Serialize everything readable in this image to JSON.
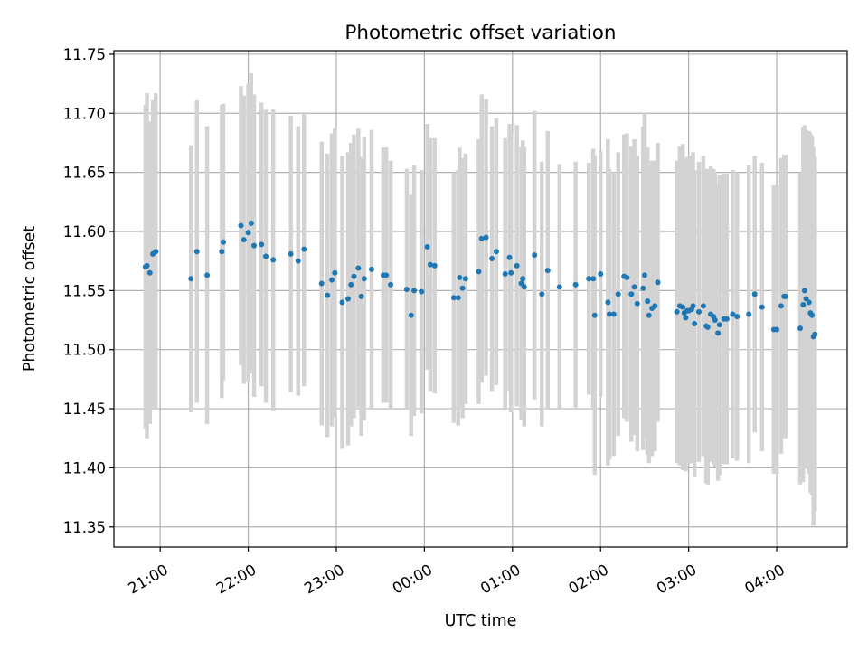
{
  "chart_data": {
    "type": "scatter",
    "title": "Photometric offset variation",
    "xlabel": "UTC time",
    "ylabel": "Photometric offset",
    "x_tick_labels": [
      "21:00",
      "22:00",
      "23:00",
      "00:00",
      "01:00",
      "02:00",
      "03:00",
      "04:00"
    ],
    "x_ticks_hours": [
      21,
      22,
      23,
      24,
      25,
      26,
      27,
      28
    ],
    "xlim_hours": [
      20.475,
      28.8
    ],
    "ylim": [
      11.333,
      11.753
    ],
    "y_ticks": [
      11.35,
      11.4,
      11.45,
      11.5,
      11.55,
      11.6,
      11.65,
      11.7,
      11.75
    ],
    "y_tick_labels": [
      "11.35",
      "11.40",
      "11.45",
      "11.50",
      "11.55",
      "11.60",
      "11.65",
      "11.70",
      "11.75"
    ],
    "grid": true,
    "colors": {
      "point": "#1f77b4",
      "errorbar": "#d3d3d3",
      "grid": "#b0b0b0"
    },
    "points": [
      {
        "t": "20:50",
        "y": 11.57,
        "e": 0.137
      },
      {
        "t": "20:51",
        "y": 11.571,
        "e": 0.146
      },
      {
        "t": "20:53",
        "y": 11.565,
        "e": 0.128
      },
      {
        "t": "20:55",
        "y": 11.581,
        "e": 0.13
      },
      {
        "t": "20:57",
        "y": 11.583,
        "e": 0.134
      },
      {
        "t": "21:21",
        "y": 11.56,
        "e": 0.113
      },
      {
        "t": "21:25",
        "y": 11.583,
        "e": 0.128
      },
      {
        "t": "21:32",
        "y": 11.563,
        "e": 0.126
      },
      {
        "t": "21:42",
        "y": 11.583,
        "e": 0.124
      },
      {
        "t": "21:43",
        "y": 11.591,
        "e": 0.117
      },
      {
        "t": "21:55",
        "y": 11.605,
        "e": 0.118
      },
      {
        "t": "21:57",
        "y": 11.593,
        "e": 0.122
      },
      {
        "t": "22:00",
        "y": 11.599,
        "e": 0.126
      },
      {
        "t": "22:02",
        "y": 11.607,
        "e": 0.127
      },
      {
        "t": "22:04",
        "y": 11.588,
        "e": 0.128
      },
      {
        "t": "22:09",
        "y": 11.589,
        "e": 0.12
      },
      {
        "t": "22:12",
        "y": 11.579,
        "e": 0.124
      },
      {
        "t": "22:17",
        "y": 11.576,
        "e": 0.128
      },
      {
        "t": "22:29",
        "y": 11.581,
        "e": 0.117
      },
      {
        "t": "22:34",
        "y": 11.575,
        "e": 0.114
      },
      {
        "t": "22:38",
        "y": 11.585,
        "e": 0.116
      },
      {
        "t": "22:50",
        "y": 11.556,
        "e": 0.12
      },
      {
        "t": "22:54",
        "y": 11.546,
        "e": 0.12
      },
      {
        "t": "22:57",
        "y": 11.559,
        "e": 0.124
      },
      {
        "t": "22:59",
        "y": 11.565,
        "e": 0.122
      },
      {
        "t": "23:04",
        "y": 11.54,
        "e": 0.124
      },
      {
        "t": "23:08",
        "y": 11.543,
        "e": 0.124
      },
      {
        "t": "23:10",
        "y": 11.555,
        "e": 0.12
      },
      {
        "t": "23:12",
        "y": 11.562,
        "e": 0.12
      },
      {
        "t": "23:15",
        "y": 11.569,
        "e": 0.118
      },
      {
        "t": "23:17",
        "y": 11.545,
        "e": 0.118
      },
      {
        "t": "23:19",
        "y": 11.56,
        "e": 0.12
      },
      {
        "t": "23:24",
        "y": 11.568,
        "e": 0.118
      },
      {
        "t": "23:32",
        "y": 11.563,
        "e": 0.108
      },
      {
        "t": "23:34",
        "y": 11.563,
        "e": 0.108
      },
      {
        "t": "23:37",
        "y": 11.555,
        "e": 0.105
      },
      {
        "t": "23:48",
        "y": 11.551,
        "e": 0.102
      },
      {
        "t": "23:51",
        "y": 11.529,
        "e": 0.102
      },
      {
        "t": "23:53",
        "y": 11.55,
        "e": 0.106
      },
      {
        "t": "23:58",
        "y": 11.549,
        "e": 0.103
      },
      {
        "t": "00:02",
        "y": 11.587,
        "e": 0.104
      },
      {
        "t": "00:04",
        "y": 11.572,
        "e": 0.107
      },
      {
        "t": "00:07",
        "y": 11.571,
        "e": 0.108
      },
      {
        "t": "00:20",
        "y": 11.544,
        "e": 0.106
      },
      {
        "t": "00:23",
        "y": 11.544,
        "e": 0.108
      },
      {
        "t": "00:24",
        "y": 11.561,
        "e": 0.11
      },
      {
        "t": "00:26",
        "y": 11.552,
        "e": 0.11
      },
      {
        "t": "00:28",
        "y": 11.56,
        "e": 0.106
      },
      {
        "t": "00:37",
        "y": 11.566,
        "e": 0.112
      },
      {
        "t": "00:39",
        "y": 11.594,
        "e": 0.122
      },
      {
        "t": "00:42",
        "y": 11.595,
        "e": 0.117
      },
      {
        "t": "00:46",
        "y": 11.577,
        "e": 0.112
      },
      {
        "t": "00:49",
        "y": 11.583,
        "e": 0.113
      },
      {
        "t": "00:55",
        "y": 11.564,
        "e": 0.115
      },
      {
        "t": "00:58",
        "y": 11.578,
        "e": 0.113
      },
      {
        "t": "00:59",
        "y": 11.565,
        "e": 0.118
      },
      {
        "t": "01:03",
        "y": 11.571,
        "e": 0.119
      },
      {
        "t": "01:06",
        "y": 11.556,
        "e": 0.115
      },
      {
        "t": "01:07",
        "y": 11.56,
        "e": 0.117
      },
      {
        "t": "01:08",
        "y": 11.553,
        "e": 0.118
      },
      {
        "t": "01:15",
        "y": 11.58,
        "e": 0.122
      },
      {
        "t": "01:20",
        "y": 11.547,
        "e": 0.112
      },
      {
        "t": "01:24",
        "y": 11.567,
        "e": 0.118
      },
      {
        "t": "01:32",
        "y": 11.553,
        "e": 0.104
      },
      {
        "t": "01:43",
        "y": 11.555,
        "e": 0.104
      },
      {
        "t": "01:52",
        "y": 11.56,
        "e": 0.098
      },
      {
        "t": "01:55",
        "y": 11.56,
        "e": 0.11
      },
      {
        "t": "01:56",
        "y": 11.529,
        "e": 0.135
      },
      {
        "t": "02:00",
        "y": 11.564,
        "e": 0.104
      },
      {
        "t": "02:05",
        "y": 11.54,
        "e": 0.138
      },
      {
        "t": "02:06",
        "y": 11.53,
        "e": 0.123
      },
      {
        "t": "02:09",
        "y": 11.53,
        "e": 0.12
      },
      {
        "t": "02:12",
        "y": 11.547,
        "e": 0.12
      },
      {
        "t": "02:16",
        "y": 11.562,
        "e": 0.12
      },
      {
        "t": "02:18",
        "y": 11.561,
        "e": 0.122
      },
      {
        "t": "02:21",
        "y": 11.547,
        "e": 0.125
      },
      {
        "t": "02:23",
        "y": 11.553,
        "e": 0.125
      },
      {
        "t": "02:25",
        "y": 11.539,
        "e": 0.125
      },
      {
        "t": "02:29",
        "y": 11.552,
        "e": 0.137
      },
      {
        "t": "02:30",
        "y": 11.563,
        "e": 0.137
      },
      {
        "t": "02:32",
        "y": 11.541,
        "e": 0.13
      },
      {
        "t": "02:33",
        "y": 11.529,
        "e": 0.125
      },
      {
        "t": "02:35",
        "y": 11.535,
        "e": 0.125
      },
      {
        "t": "02:37",
        "y": 11.537,
        "e": 0.123
      },
      {
        "t": "02:39",
        "y": 11.557,
        "e": 0.118
      },
      {
        "t": "02:52",
        "y": 11.532,
        "e": 0.128
      },
      {
        "t": "02:54",
        "y": 11.537,
        "e": 0.135
      },
      {
        "t": "02:56",
        "y": 11.536,
        "e": 0.138
      },
      {
        "t": "02:57",
        "y": 11.531,
        "e": 0.13
      },
      {
        "t": "02:58",
        "y": 11.527,
        "e": 0.13
      },
      {
        "t": "02:59",
        "y": 11.533,
        "e": 0.13
      },
      {
        "t": "03:00",
        "y": 11.533,
        "e": 0.13
      },
      {
        "t": "03:02",
        "y": 11.534,
        "e": 0.13
      },
      {
        "t": "03:03",
        "y": 11.537,
        "e": 0.13
      },
      {
        "t": "03:04",
        "y": 11.522,
        "e": 0.13
      },
      {
        "t": "03:07",
        "y": 11.532,
        "e": 0.127
      },
      {
        "t": "03:10",
        "y": 11.537,
        "e": 0.127
      },
      {
        "t": "03:12",
        "y": 11.52,
        "e": 0.133
      },
      {
        "t": "03:13",
        "y": 11.519,
        "e": 0.133
      },
      {
        "t": "03:15",
        "y": 11.53,
        "e": 0.125
      },
      {
        "t": "03:17",
        "y": 11.528,
        "e": 0.125
      },
      {
        "t": "03:18",
        "y": 11.525,
        "e": 0.125
      },
      {
        "t": "03:20",
        "y": 11.514,
        "e": 0.125
      },
      {
        "t": "03:21",
        "y": 11.521,
        "e": 0.127
      },
      {
        "t": "03:24",
        "y": 11.526,
        "e": 0.123
      },
      {
        "t": "03:26",
        "y": 11.526,
        "e": 0.123
      },
      {
        "t": "03:30",
        "y": 11.53,
        "e": 0.122
      },
      {
        "t": "03:33",
        "y": 11.528,
        "e": 0.122
      },
      {
        "t": "03:41",
        "y": 11.53,
        "e": 0.126
      },
      {
        "t": "03:45",
        "y": 11.547,
        "e": 0.117
      },
      {
        "t": "03:50",
        "y": 11.536,
        "e": 0.122
      },
      {
        "t": "03:58",
        "y": 11.517,
        "e": 0.122
      },
      {
        "t": "04:00",
        "y": 11.517,
        "e": 0.122
      },
      {
        "t": "04:03",
        "y": 11.537,
        "e": 0.125
      },
      {
        "t": "04:05",
        "y": 11.545,
        "e": 0.12
      },
      {
        "t": "04:06",
        "y": 11.545,
        "e": 0.12
      },
      {
        "t": "04:16",
        "y": 11.518,
        "e": 0.132
      },
      {
        "t": "04:18",
        "y": 11.538,
        "e": 0.15
      },
      {
        "t": "04:19",
        "y": 11.55,
        "e": 0.14
      },
      {
        "t": "04:20",
        "y": 11.543,
        "e": 0.143
      },
      {
        "t": "04:22",
        "y": 11.54,
        "e": 0.145
      },
      {
        "t": "04:23",
        "y": 11.531,
        "e": 0.152
      },
      {
        "t": "04:24",
        "y": 11.529,
        "e": 0.152
      },
      {
        "t": "04:25",
        "y": 11.511,
        "e": 0.16
      },
      {
        "t": "04:26",
        "y": 11.513,
        "e": 0.15
      }
    ]
  }
}
